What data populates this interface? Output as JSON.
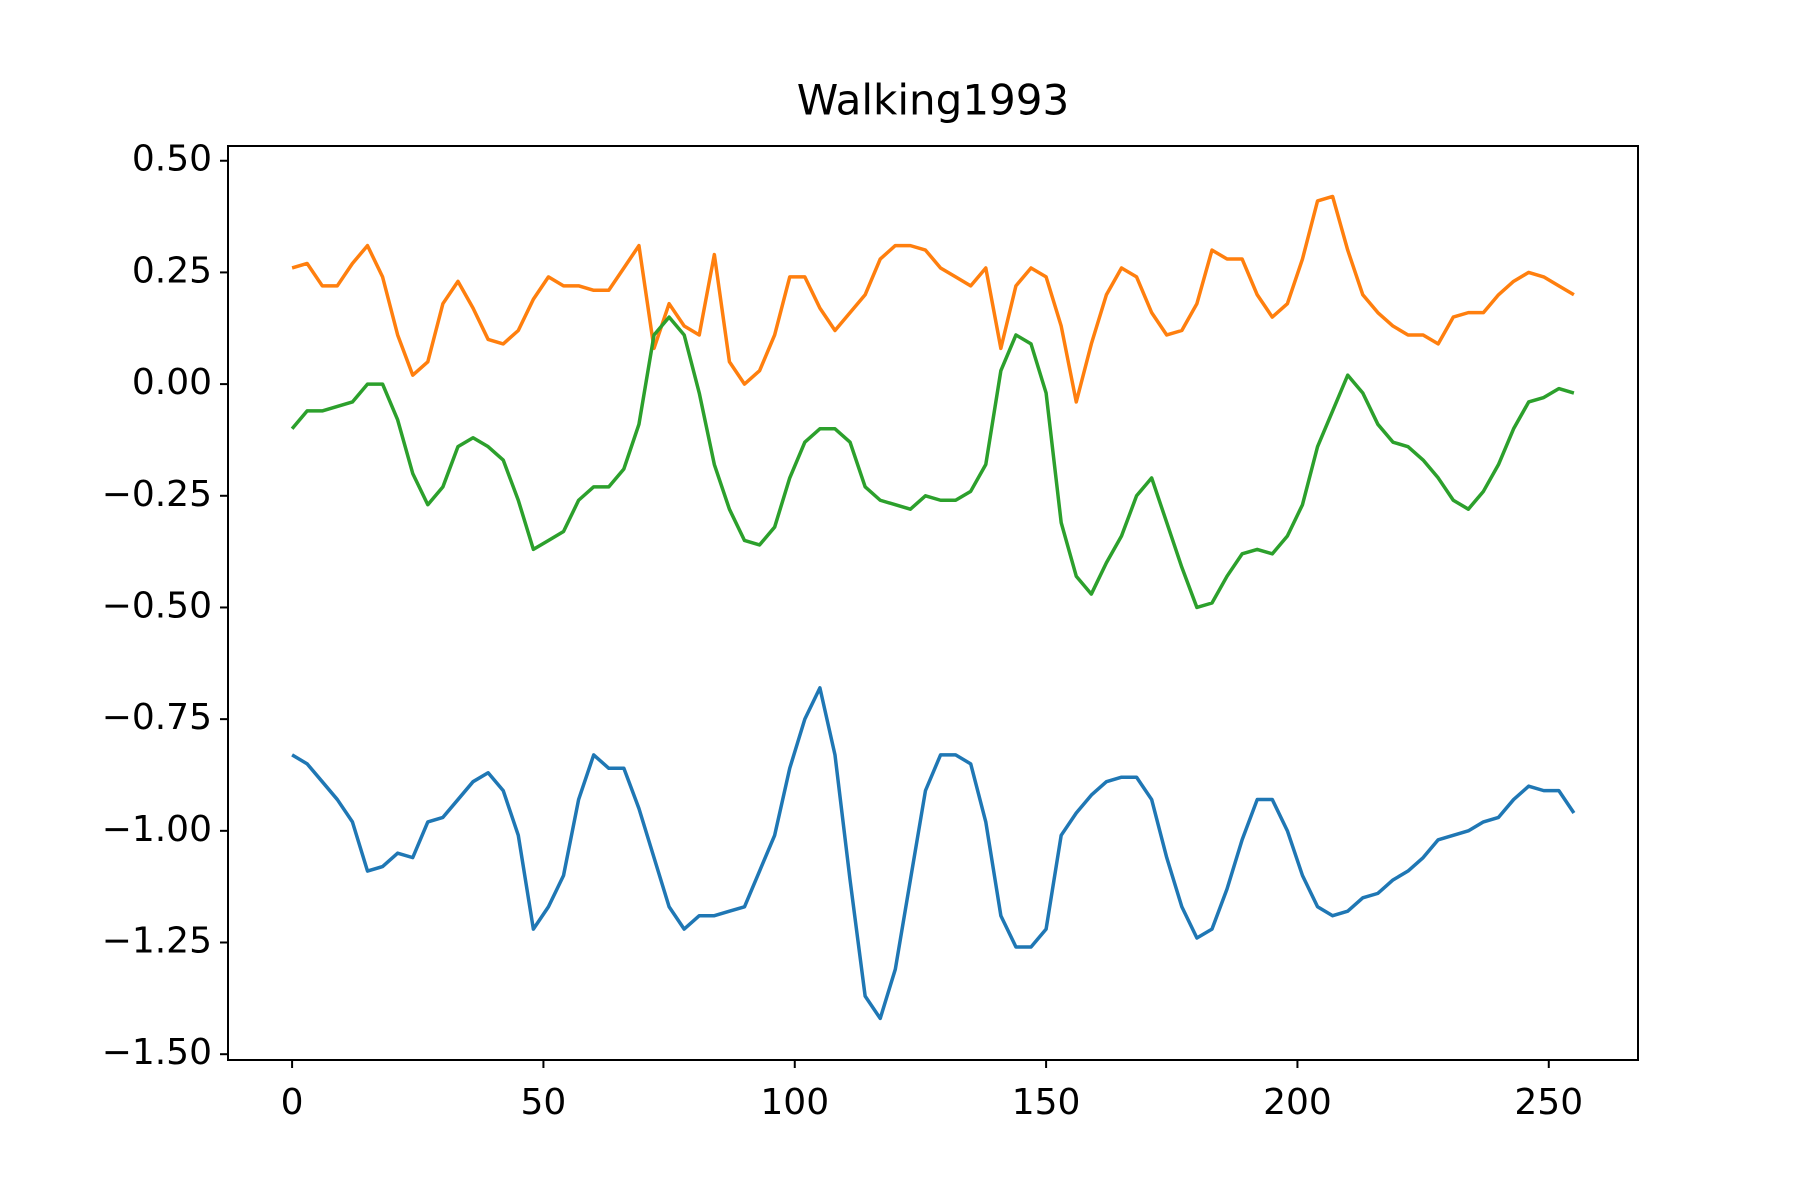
{
  "chart_data": {
    "type": "line",
    "title": "Walking1993",
    "x": [
      0,
      3,
      6,
      9,
      12,
      15,
      18,
      21,
      24,
      27,
      30,
      33,
      36,
      39,
      42,
      45,
      48,
      51,
      54,
      57,
      60,
      63,
      66,
      69,
      72,
      75,
      78,
      81,
      84,
      87,
      90,
      93,
      96,
      99,
      102,
      105,
      108,
      111,
      114,
      117,
      120,
      123,
      126,
      129,
      132,
      135,
      138,
      141,
      144,
      147,
      150,
      153,
      156,
      159,
      162,
      165,
      168,
      171,
      174,
      177,
      180,
      183,
      186,
      189,
      192,
      195,
      198,
      201,
      204,
      207,
      210,
      213,
      216,
      219,
      222,
      225,
      228,
      231,
      234,
      237,
      240,
      243,
      246,
      249,
      252,
      255
    ],
    "series": [
      {
        "color": "#1f77b4",
        "values": [
          -0.83,
          -0.85,
          -0.89,
          -0.93,
          -0.98,
          -1.09,
          -1.08,
          -1.05,
          -1.06,
          -0.98,
          -0.97,
          -0.93,
          -0.89,
          -0.87,
          -0.91,
          -1.01,
          -1.22,
          -1.17,
          -1.1,
          -0.93,
          -0.83,
          -0.86,
          -0.86,
          -0.95,
          -1.06,
          -1.17,
          -1.22,
          -1.19,
          -1.19,
          -1.18,
          -1.17,
          -1.09,
          -1.01,
          -0.86,
          -0.75,
          -0.68,
          -0.83,
          -1.11,
          -1.37,
          -1.42,
          -1.31,
          -1.11,
          -0.91,
          -0.83,
          -0.83,
          -0.85,
          -0.98,
          -1.19,
          -1.26,
          -1.26,
          -1.22,
          -1.01,
          -0.96,
          -0.92,
          -0.89,
          -0.88,
          -0.88,
          -0.93,
          -1.06,
          -1.17,
          -1.24,
          -1.22,
          -1.13,
          -1.02,
          -0.93,
          -0.93,
          -1.0,
          -1.1,
          -1.17,
          -1.19,
          -1.18,
          -1.15,
          -1.14,
          -1.11,
          -1.09,
          -1.06,
          -1.02,
          -1.01,
          -1.0,
          -0.98,
          -0.97,
          -0.93,
          -0.9,
          -0.91,
          -0.91,
          -0.96
        ]
      },
      {
        "color": "#ff7f0e",
        "values": [
          0.26,
          0.27,
          0.22,
          0.22,
          0.27,
          0.31,
          0.24,
          0.11,
          0.02,
          0.05,
          0.18,
          0.23,
          0.17,
          0.1,
          0.09,
          0.12,
          0.19,
          0.24,
          0.22,
          0.22,
          0.21,
          0.21,
          0.26,
          0.31,
          0.08,
          0.18,
          0.13,
          0.11,
          0.29,
          0.05,
          0.0,
          0.03,
          0.11,
          0.24,
          0.24,
          0.17,
          0.12,
          0.16,
          0.2,
          0.28,
          0.31,
          0.31,
          0.3,
          0.26,
          0.24,
          0.22,
          0.26,
          0.08,
          0.22,
          0.26,
          0.24,
          0.13,
          -0.04,
          0.09,
          0.2,
          0.26,
          0.24,
          0.16,
          0.11,
          0.12,
          0.18,
          0.3,
          0.28,
          0.28,
          0.2,
          0.15,
          0.18,
          0.28,
          0.41,
          0.42,
          0.3,
          0.2,
          0.16,
          0.13,
          0.11,
          0.11,
          0.09,
          0.15,
          0.16,
          0.16,
          0.2,
          0.23,
          0.25,
          0.24,
          0.22,
          0.2
        ]
      },
      {
        "color": "#2ca02c",
        "values": [
          -0.1,
          -0.06,
          -0.06,
          -0.05,
          -0.04,
          0.0,
          0.0,
          -0.08,
          -0.2,
          -0.27,
          -0.23,
          -0.14,
          -0.12,
          -0.14,
          -0.17,
          -0.26,
          -0.37,
          -0.35,
          -0.33,
          -0.26,
          -0.23,
          -0.23,
          -0.19,
          -0.09,
          0.11,
          0.15,
          0.11,
          -0.02,
          -0.18,
          -0.28,
          -0.35,
          -0.36,
          -0.32,
          -0.21,
          -0.13,
          -0.1,
          -0.1,
          -0.13,
          -0.23,
          -0.26,
          -0.27,
          -0.28,
          -0.25,
          -0.26,
          -0.26,
          -0.24,
          -0.18,
          0.03,
          0.11,
          0.09,
          -0.02,
          -0.31,
          -0.43,
          -0.47,
          -0.4,
          -0.34,
          -0.25,
          -0.21,
          -0.31,
          -0.41,
          -0.5,
          -0.49,
          -0.43,
          -0.38,
          -0.37,
          -0.38,
          -0.34,
          -0.27,
          -0.14,
          -0.06,
          0.02,
          -0.02,
          -0.09,
          -0.13,
          -0.14,
          -0.17,
          -0.21,
          -0.26,
          -0.28,
          -0.24,
          -0.18,
          -0.1,
          -0.04,
          -0.03,
          -0.01,
          -0.02
        ]
      }
    ],
    "xlim": [
      -12.75,
      267.75
    ],
    "xticks": [
      0,
      50,
      100,
      150,
      200,
      250
    ],
    "ylim": [
      -1.513,
      0.533
    ],
    "yticks": [
      {
        "value": 0.5,
        "label": "0.50"
      },
      {
        "value": 0.25,
        "label": "0.25"
      },
      {
        "value": 0,
        "label": "0.00"
      },
      {
        "value": -0.25,
        "label": "−0.25"
      },
      {
        "value": -0.5,
        "label": "−0.50"
      },
      {
        "value": -0.75,
        "label": "−0.75"
      },
      {
        "value": -1,
        "label": "−1.00"
      },
      {
        "value": -1.25,
        "label": "−1.25"
      },
      {
        "value": -1.5,
        "label": "−1.50"
      }
    ],
    "grid": false
  }
}
